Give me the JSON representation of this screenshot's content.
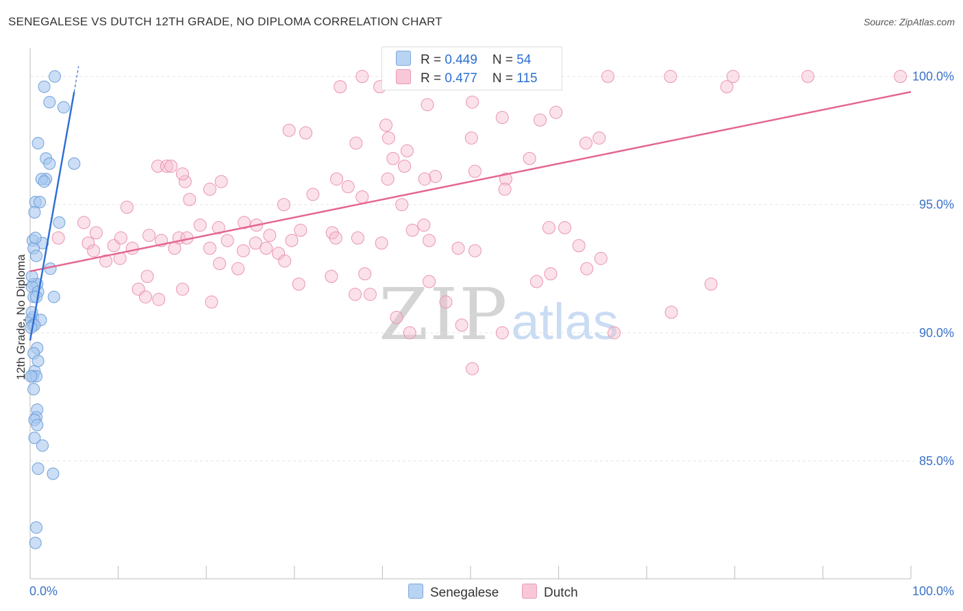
{
  "title": "SENEGALESE VS DUTCH 12TH GRADE, NO DIPLOMA CORRELATION CHART",
  "source": "Source: ZipAtlas.com",
  "watermark": {
    "zip": "ZIP",
    "atlas": "atlas"
  },
  "legend": {
    "rows": [
      {
        "r_label": "R = ",
        "r_value": "0.449",
        "n_label": "N = ",
        "n_value": "54"
      },
      {
        "r_label": "R = ",
        "r_value": "0.477",
        "n_label": "N = ",
        "n_value": "115"
      }
    ]
  },
  "colors": {
    "senegalese_fill": "#a9c8f0",
    "senegalese_stroke": "#6f9fd8",
    "senegalese_line": "#2f6fd6",
    "dutch_fill": "#f7bcd0",
    "dutch_stroke": "#ea93b3",
    "dutch_line": "#e46791",
    "axis_label": "#3a72c8",
    "grid": "#e4e4e4"
  },
  "chart_data": {
    "type": "scatter",
    "title": "SENEGALESE VS DUTCH 12TH GRADE, NO DIPLOMA CORRELATION CHART",
    "xlabel": "",
    "ylabel": "12th Grade, No Diploma",
    "xlim": [
      0,
      100
    ],
    "ylim": [
      80.4,
      100.9
    ],
    "x_tick_labels": [
      {
        "value": 0,
        "label": "0.0%"
      },
      {
        "value": 100,
        "label": "100.0%"
      }
    ],
    "y_tick_labels": [
      {
        "value": 85,
        "label": "85.0%"
      },
      {
        "value": 90,
        "label": "90.0%"
      },
      {
        "value": 95,
        "label": "95.0%"
      },
      {
        "value": 100,
        "label": "100.0%"
      }
    ],
    "grid": true,
    "legend_position": "bottom",
    "series": [
      {
        "name": "Senegalese",
        "R": 0.449,
        "N": 54,
        "trend": {
          "x": [
            0,
            5.0
          ],
          "y": [
            89.7,
            99.4
          ],
          "dash_to": [
            5.5,
            100.4
          ]
        },
        "points": [
          [
            2.8,
            100.0
          ],
          [
            1.6,
            99.6
          ],
          [
            2.2,
            99.0
          ],
          [
            3.8,
            98.8
          ],
          [
            0.9,
            97.4
          ],
          [
            1.8,
            96.8
          ],
          [
            2.2,
            96.6
          ],
          [
            5.0,
            96.6
          ],
          [
            1.8,
            96.0
          ],
          [
            1.3,
            96.0
          ],
          [
            1.6,
            95.9
          ],
          [
            0.6,
            95.1
          ],
          [
            1.1,
            95.1
          ],
          [
            0.5,
            94.7
          ],
          [
            3.3,
            94.3
          ],
          [
            0.3,
            93.6
          ],
          [
            1.4,
            93.5
          ],
          [
            0.4,
            93.3
          ],
          [
            0.7,
            93.0
          ],
          [
            2.3,
            92.5
          ],
          [
            0.4,
            91.9
          ],
          [
            0.8,
            91.9
          ],
          [
            0.2,
            91.8
          ],
          [
            0.9,
            91.6
          ],
          [
            0.4,
            91.4
          ],
          [
            0.7,
            91.4
          ],
          [
            2.7,
            91.4
          ],
          [
            0.3,
            90.6
          ],
          [
            1.2,
            90.5
          ],
          [
            0.1,
            90.5
          ],
          [
            0.3,
            90.3
          ],
          [
            0.5,
            90.3
          ],
          [
            0.1,
            90.2
          ],
          [
            0.8,
            89.4
          ],
          [
            0.4,
            89.2
          ],
          [
            0.5,
            88.5
          ],
          [
            0.3,
            88.3
          ],
          [
            0.7,
            88.3
          ],
          [
            0.1,
            88.3
          ],
          [
            0.8,
            87.0
          ],
          [
            0.7,
            86.7
          ],
          [
            0.5,
            86.6
          ],
          [
            0.8,
            86.4
          ],
          [
            0.5,
            85.9
          ],
          [
            1.4,
            85.6
          ],
          [
            0.9,
            84.7
          ],
          [
            2.6,
            84.5
          ],
          [
            0.7,
            82.4
          ],
          [
            0.6,
            81.8
          ],
          [
            0.2,
            92.2
          ],
          [
            0.6,
            93.7
          ],
          [
            0.2,
            90.8
          ],
          [
            0.4,
            87.8
          ],
          [
            0.9,
            88.9
          ]
        ]
      },
      {
        "name": "Dutch",
        "R": 0.477,
        "N": 115,
        "trend": {
          "x": [
            0,
            100
          ],
          "y": [
            92.4,
            99.4
          ]
        },
        "points": [
          [
            37.7,
            100.0
          ],
          [
            50.7,
            100.0
          ],
          [
            59.5,
            100.0
          ],
          [
            65.6,
            100.0
          ],
          [
            72.7,
            100.0
          ],
          [
            79.8,
            100.0
          ],
          [
            88.3,
            100.0
          ],
          [
            98.8,
            100.0
          ],
          [
            35.2,
            99.6
          ],
          [
            39.7,
            99.6
          ],
          [
            79.1,
            99.6
          ],
          [
            45.1,
            98.9
          ],
          [
            50.2,
            99.0
          ],
          [
            53.6,
            98.4
          ],
          [
            59.7,
            98.6
          ],
          [
            57.9,
            98.3
          ],
          [
            40.4,
            98.1
          ],
          [
            29.4,
            97.9
          ],
          [
            31.3,
            97.8
          ],
          [
            40.7,
            97.6
          ],
          [
            50.1,
            97.6
          ],
          [
            63.1,
            97.4
          ],
          [
            64.6,
            97.6
          ],
          [
            37.0,
            97.4
          ],
          [
            42.8,
            97.1
          ],
          [
            56.7,
            96.8
          ],
          [
            41.2,
            96.8
          ],
          [
            42.5,
            96.5
          ],
          [
            50.5,
            96.3
          ],
          [
            46.0,
            96.1
          ],
          [
            40.6,
            96.0
          ],
          [
            44.8,
            96.0
          ],
          [
            54.0,
            96.0
          ],
          [
            53.9,
            95.6
          ],
          [
            34.8,
            96.0
          ],
          [
            36.1,
            95.7
          ],
          [
            37.7,
            95.3
          ],
          [
            42.2,
            95.0
          ],
          [
            28.8,
            95.0
          ],
          [
            32.1,
            95.4
          ],
          [
            17.6,
            95.9
          ],
          [
            14.5,
            96.5
          ],
          [
            15.5,
            96.5
          ],
          [
            16.0,
            96.5
          ],
          [
            17.3,
            96.2
          ],
          [
            18.1,
            95.2
          ],
          [
            20.4,
            95.6
          ],
          [
            21.7,
            95.9
          ],
          [
            11.0,
            94.9
          ],
          [
            19.3,
            94.2
          ],
          [
            21.4,
            94.1
          ],
          [
            24.3,
            94.3
          ],
          [
            25.7,
            94.2
          ],
          [
            27.2,
            93.8
          ],
          [
            29.7,
            93.6
          ],
          [
            30.7,
            94.0
          ],
          [
            34.3,
            93.9
          ],
          [
            34.7,
            93.7
          ],
          [
            37.2,
            93.7
          ],
          [
            39.9,
            93.5
          ],
          [
            43.4,
            94.0
          ],
          [
            44.7,
            94.2
          ],
          [
            45.3,
            93.6
          ],
          [
            48.6,
            93.3
          ],
          [
            50.5,
            93.2
          ],
          [
            58.9,
            94.1
          ],
          [
            60.7,
            94.1
          ],
          [
            62.3,
            93.4
          ],
          [
            64.8,
            92.9
          ],
          [
            6.1,
            94.3
          ],
          [
            7.5,
            93.9
          ],
          [
            9.5,
            93.4
          ],
          [
            10.3,
            93.7
          ],
          [
            11.6,
            93.3
          ],
          [
            13.5,
            93.8
          ],
          [
            14.9,
            93.6
          ],
          [
            16.9,
            93.7
          ],
          [
            16.4,
            93.3
          ],
          [
            17.8,
            93.7
          ],
          [
            20.4,
            93.3
          ],
          [
            22.4,
            93.6
          ],
          [
            24.2,
            93.2
          ],
          [
            25.6,
            93.5
          ],
          [
            26.8,
            93.3
          ],
          [
            28.2,
            93.1
          ],
          [
            28.9,
            92.8
          ],
          [
            3.2,
            93.7
          ],
          [
            6.6,
            93.5
          ],
          [
            7.2,
            93.2
          ],
          [
            8.6,
            92.8
          ],
          [
            10.2,
            92.9
          ],
          [
            12.3,
            91.7
          ],
          [
            14.6,
            91.3
          ],
          [
            13.1,
            91.4
          ],
          [
            17.3,
            91.7
          ],
          [
            21.5,
            92.7
          ],
          [
            23.6,
            92.5
          ],
          [
            30.5,
            91.9
          ],
          [
            34.2,
            92.2
          ],
          [
            36.9,
            91.5
          ],
          [
            38.6,
            91.5
          ],
          [
            41.6,
            90.6
          ],
          [
            43.1,
            90.0
          ],
          [
            47.2,
            91.2
          ],
          [
            49.0,
            90.3
          ],
          [
            50.2,
            88.6
          ],
          [
            53.6,
            90.0
          ],
          [
            57.5,
            92.0
          ],
          [
            59.1,
            92.3
          ],
          [
            63.2,
            92.5
          ],
          [
            66.3,
            90.0
          ],
          [
            72.8,
            90.8
          ],
          [
            77.3,
            91.9
          ],
          [
            13.3,
            92.2
          ],
          [
            20.6,
            91.2
          ],
          [
            38.0,
            92.3
          ],
          [
            45.3,
            92.0
          ]
        ]
      }
    ]
  },
  "bottom_legend": [
    {
      "label": "Senegalese"
    },
    {
      "label": "Dutch"
    }
  ]
}
